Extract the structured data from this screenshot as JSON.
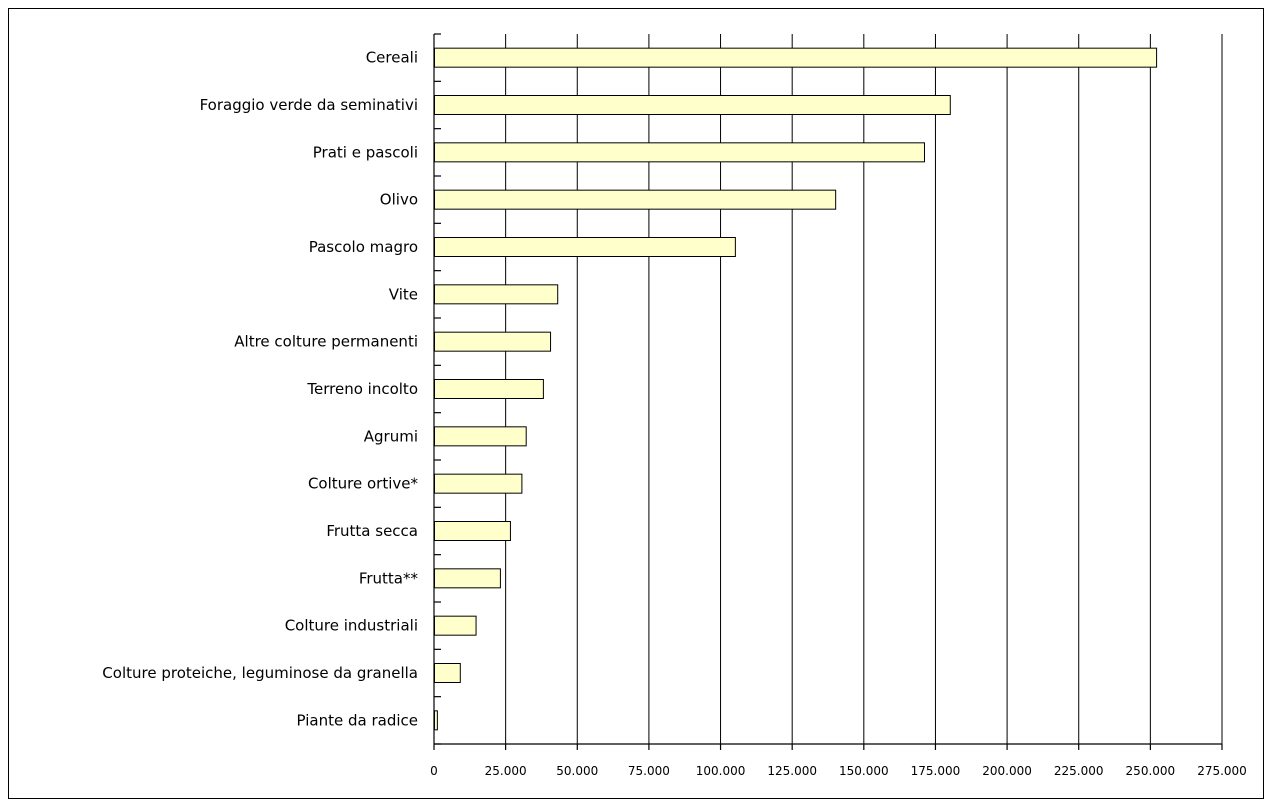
{
  "chart_data": {
    "type": "bar",
    "orientation": "horizontal",
    "categories": [
      "Cereali",
      "Foraggio verde da seminativi",
      "Prati e pascoli",
      "Olivo",
      "Pascolo magro",
      "Vite",
      "Altre colture permanenti",
      "Terreno incolto",
      "Agrumi",
      "Colture ortive*",
      "Frutta secca",
      "Frutta**",
      "Colture industriali",
      "Colture proteiche, leguminose da granella",
      "Piante da radice"
    ],
    "values": [
      252000,
      180000,
      171000,
      140000,
      105000,
      43000,
      40500,
      38000,
      32000,
      30500,
      26500,
      23000,
      14500,
      9000,
      1000
    ],
    "xlim": [
      0,
      275000
    ],
    "xticks": [
      0,
      25000,
      50000,
      75000,
      100000,
      125000,
      150000,
      175000,
      200000,
      225000,
      250000,
      275000
    ],
    "xtick_labels": [
      "0",
      "25.000",
      "50.000",
      "75.000",
      "100.000",
      "125.000",
      "150.000",
      "175.000",
      "200.000",
      "225.000",
      "250.000",
      "275.000"
    ],
    "grid": "vertical",
    "bar_color": "#ffffcc",
    "title": "",
    "xlabel": "",
    "ylabel": ""
  }
}
